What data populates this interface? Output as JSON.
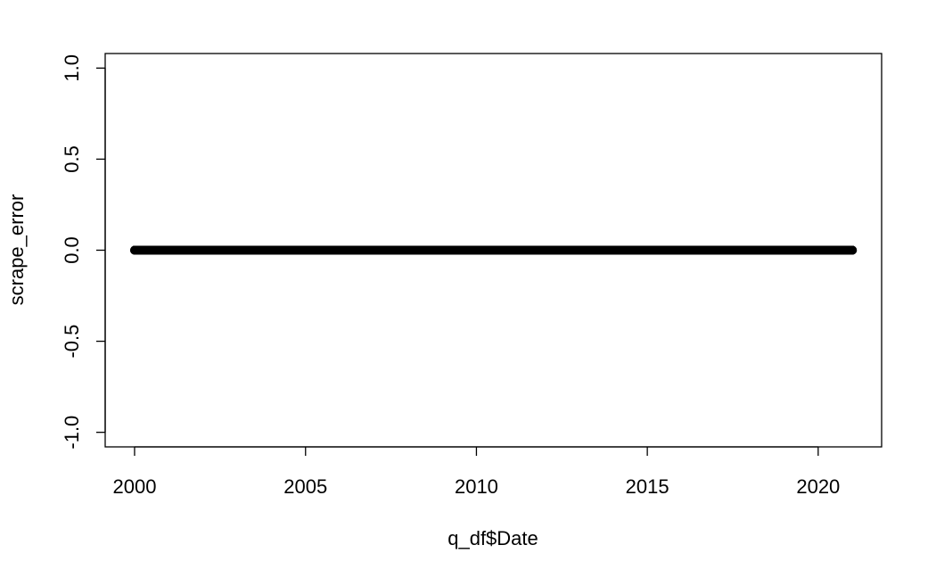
{
  "chart_data": {
    "type": "scatter",
    "title": "",
    "xlabel": "q_df$Date",
    "ylabel": "scrape_error",
    "xlim": [
      "1999-02-21",
      "2021-11-09"
    ],
    "ylim": [
      -1.08,
      1.08
    ],
    "x_ticks": [
      {
        "value": "2000-01-01",
        "label": "2000"
      },
      {
        "value": "2005-01-01",
        "label": "2005"
      },
      {
        "value": "2010-01-01",
        "label": "2010"
      },
      {
        "value": "2015-01-01",
        "label": "2015"
      },
      {
        "value": "2020-01-01",
        "label": "2020"
      }
    ],
    "y_ticks": [
      {
        "value": -1.0,
        "label": "-1.0"
      },
      {
        "value": -0.5,
        "label": "-0.5"
      },
      {
        "value": 0.0,
        "label": "0.0"
      },
      {
        "value": 0.5,
        "label": "0.5"
      },
      {
        "value": 1.0,
        "label": "1.0"
      }
    ],
    "grid": false,
    "series": [
      {
        "x_start": "2000-01-01",
        "x_end": "2021-01-01",
        "frequency": "daily",
        "y_constant": 0.0,
        "marker": "open-circle",
        "color": "#000000"
      }
    ]
  }
}
